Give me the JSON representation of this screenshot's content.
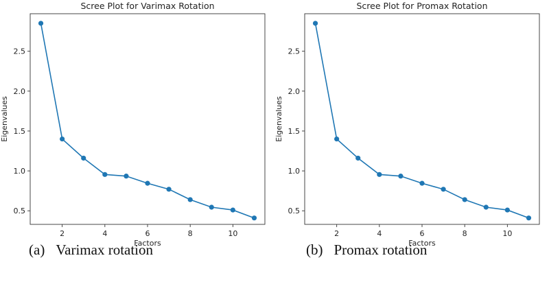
{
  "chart_data": [
    {
      "type": "line",
      "title": "Scree Plot for Varimax Rotation",
      "xlabel": "Factors",
      "ylabel": "Eigenvalues",
      "x": [
        1,
        2,
        3,
        4,
        5,
        6,
        7,
        8,
        9,
        10,
        11
      ],
      "series": [
        {
          "values": [
            2.85,
            1.4,
            1.16,
            0.955,
            0.935,
            0.845,
            0.77,
            0.64,
            0.545,
            0.51,
            0.41
          ]
        }
      ],
      "xticks": [
        2,
        4,
        6,
        8,
        10
      ],
      "yticks": [
        0.5,
        1.0,
        1.5,
        2.0,
        2.5
      ],
      "xlim": [
        0.5,
        11.5
      ],
      "ylim": [
        0.33,
        2.97
      ],
      "grid": false,
      "color": "#1f77b4",
      "caption_tag": "(a)",
      "caption_text": "Varimax rotation"
    },
    {
      "type": "line",
      "title": "Scree Plot for Promax Rotation",
      "xlabel": "Factors",
      "ylabel": "Eigenvalues",
      "x": [
        1,
        2,
        3,
        4,
        5,
        6,
        7,
        8,
        9,
        10,
        11
      ],
      "series": [
        {
          "values": [
            2.85,
            1.4,
            1.16,
            0.955,
            0.935,
            0.845,
            0.77,
            0.64,
            0.545,
            0.51,
            0.41
          ]
        }
      ],
      "xticks": [
        2,
        4,
        6,
        8,
        10
      ],
      "yticks": [
        0.5,
        1.0,
        1.5,
        2.0,
        2.5
      ],
      "xlim": [
        0.5,
        11.5
      ],
      "ylim": [
        0.33,
        2.97
      ],
      "grid": false,
      "color": "#1f77b4",
      "caption_tag": "(b)",
      "caption_text": "Promax rotation"
    }
  ]
}
